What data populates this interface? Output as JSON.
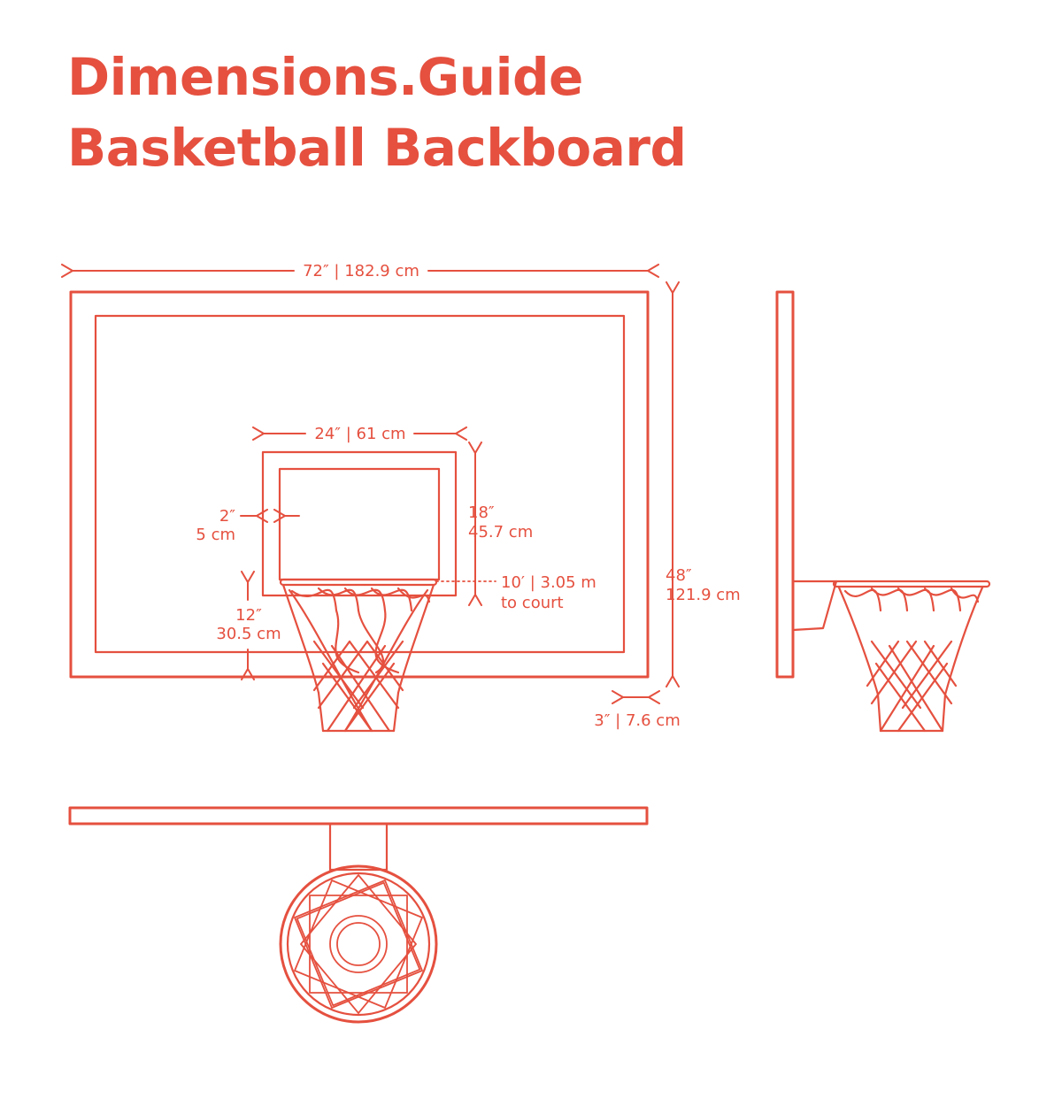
{
  "title": {
    "line1": "Dimensions.Guide",
    "line2": "Basketball Backboard"
  },
  "colors": {
    "accent": "#e5503f",
    "background": "#ffffff"
  },
  "dimensions": {
    "board_width": "72″ | 182.9 cm",
    "box_width": "24″ | 61 cm",
    "box_height_in": "18″",
    "box_height_cm": "45.7 cm",
    "box_border_in": "2″",
    "box_border_cm": "5 cm",
    "rim_height_line1": "10′ | 3.05 m",
    "rim_height_line2": "to court",
    "board_height_in": "48″",
    "board_height_cm": "121.9 cm",
    "rim_to_bottom_in": "12″",
    "rim_to_bottom_cm": "30.5 cm",
    "board_thickness": "3″ | 7.6 cm"
  }
}
